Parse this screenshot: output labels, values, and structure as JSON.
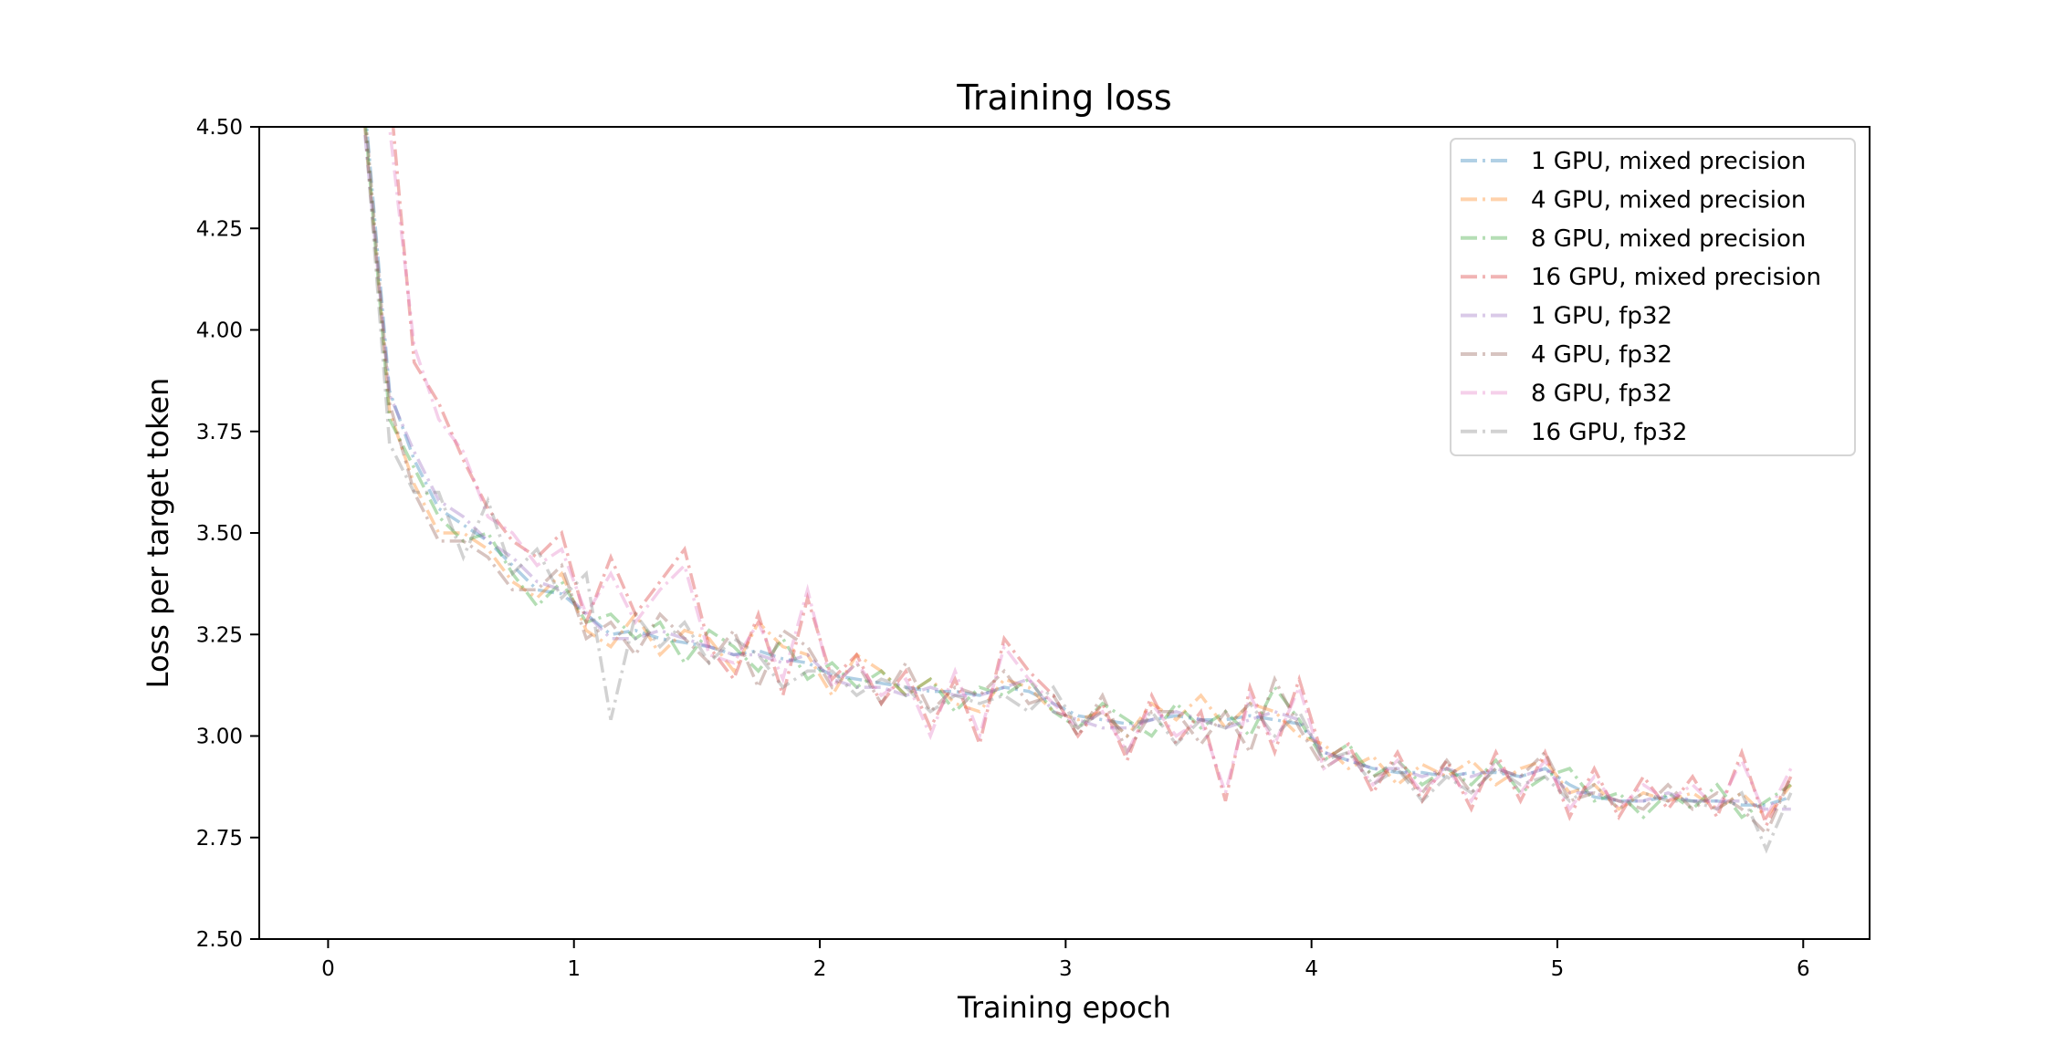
{
  "chart_data": {
    "type": "line",
    "title": "Training loss",
    "xlabel": "Training epoch",
    "ylabel": "Loss per target token",
    "xlim": [
      -0.28,
      6.27
    ],
    "ylim": [
      2.5,
      4.5
    ],
    "xticks": [
      0,
      1,
      2,
      3,
      4,
      5,
      6
    ],
    "yticks": [
      2.5,
      2.75,
      3.0,
      3.25,
      3.5,
      3.75,
      4.0,
      4.25,
      4.5
    ],
    "ytick_labels": [
      "2.50",
      "2.75",
      "3.00",
      "3.25",
      "3.50",
      "3.75",
      "4.00",
      "4.25",
      "4.50"
    ],
    "grid": false,
    "legend_placement": "top-right",
    "line_style": "dash-dot",
    "x": [
      0.15,
      0.25,
      0.35,
      0.45,
      0.55,
      0.65,
      0.75,
      0.85,
      0.95,
      1.05,
      1.15,
      1.25,
      1.35,
      1.45,
      1.55,
      1.65,
      1.75,
      1.85,
      1.95,
      2.05,
      2.15,
      2.25,
      2.35,
      2.45,
      2.55,
      2.65,
      2.75,
      2.85,
      2.95,
      3.05,
      3.15,
      3.25,
      3.35,
      3.45,
      3.55,
      3.65,
      3.75,
      3.85,
      3.95,
      4.05,
      4.15,
      4.25,
      4.35,
      4.45,
      4.55,
      4.65,
      4.75,
      4.85,
      4.95,
      5.05,
      5.15,
      5.25,
      5.35,
      5.45,
      5.55,
      5.65,
      5.75,
      5.85,
      5.95
    ],
    "series": [
      {
        "name": "1 GPU, mixed precision",
        "color": "#1f77b4",
        "values": [
          4.55,
          3.85,
          3.68,
          3.56,
          3.52,
          3.48,
          3.42,
          3.36,
          3.35,
          3.3,
          3.25,
          3.26,
          3.24,
          3.23,
          3.22,
          3.2,
          3.21,
          3.19,
          3.18,
          3.15,
          3.14,
          3.13,
          3.12,
          3.11,
          3.11,
          3.1,
          3.12,
          3.11,
          3.08,
          3.05,
          3.04,
          3.03,
          3.04,
          3.05,
          3.04,
          3.04,
          3.05,
          3.04,
          3.03,
          2.96,
          2.94,
          2.92,
          2.91,
          2.91,
          2.9,
          2.91,
          2.91,
          2.9,
          2.92,
          2.88,
          2.85,
          2.84,
          2.84,
          2.85,
          2.84,
          2.84,
          2.83,
          2.83,
          2.85
        ]
      },
      {
        "name": "4 GPU, mixed precision",
        "color": "#ff7f0e",
        "values": [
          4.5,
          3.8,
          3.62,
          3.5,
          3.5,
          3.46,
          3.38,
          3.34,
          3.4,
          3.26,
          3.22,
          3.3,
          3.2,
          3.26,
          3.24,
          3.16,
          3.28,
          3.22,
          3.2,
          3.1,
          3.2,
          3.16,
          3.1,
          3.14,
          3.08,
          3.06,
          3.14,
          3.12,
          3.06,
          3.04,
          3.06,
          3.0,
          3.08,
          3.04,
          3.1,
          3.02,
          3.08,
          3.06,
          3.0,
          2.98,
          2.92,
          2.95,
          2.88,
          2.93,
          2.9,
          2.94,
          2.88,
          2.92,
          2.94,
          2.86,
          2.88,
          2.82,
          2.86,
          2.84,
          2.86,
          2.82,
          2.86,
          2.8,
          2.88
        ]
      },
      {
        "name": "8 GPU, mixed precision",
        "color": "#2ca02c",
        "values": [
          4.52,
          3.78,
          3.66,
          3.54,
          3.48,
          3.5,
          3.4,
          3.32,
          3.38,
          3.28,
          3.3,
          3.24,
          3.28,
          3.18,
          3.26,
          3.22,
          3.16,
          3.24,
          3.14,
          3.18,
          3.12,
          3.16,
          3.1,
          3.14,
          3.06,
          3.12,
          3.1,
          3.14,
          3.06,
          3.02,
          3.08,
          3.04,
          3.0,
          3.08,
          3.02,
          3.06,
          3.0,
          3.12,
          3.04,
          2.94,
          2.98,
          2.9,
          2.94,
          2.88,
          2.92,
          2.88,
          2.94,
          2.86,
          2.9,
          2.92,
          2.84,
          2.86,
          2.8,
          2.86,
          2.82,
          2.88,
          2.8,
          2.84,
          2.88
        ]
      },
      {
        "name": "16 GPU, mixed precision",
        "color": "#d62728",
        "values": [
          6.0,
          4.6,
          3.92,
          3.82,
          3.68,
          3.56,
          3.48,
          3.44,
          3.5,
          3.28,
          3.44,
          3.3,
          3.38,
          3.46,
          3.22,
          3.14,
          3.3,
          3.1,
          3.34,
          3.14,
          3.2,
          3.08,
          3.16,
          3.02,
          3.14,
          2.98,
          3.24,
          3.16,
          3.1,
          3.0,
          3.08,
          2.94,
          3.1,
          2.98,
          3.06,
          2.84,
          3.12,
          2.96,
          3.14,
          2.94,
          2.98,
          2.86,
          2.96,
          2.84,
          2.94,
          2.82,
          2.96,
          2.84,
          2.96,
          2.8,
          2.92,
          2.8,
          2.9,
          2.82,
          2.9,
          2.8,
          2.96,
          2.78,
          2.9
        ]
      },
      {
        "name": "1 GPU, fp32",
        "color": "#9467bd",
        "values": [
          4.48,
          3.84,
          3.7,
          3.58,
          3.54,
          3.48,
          3.44,
          3.38,
          3.36,
          3.3,
          3.24,
          3.24,
          3.26,
          3.24,
          3.22,
          3.2,
          3.2,
          3.18,
          3.2,
          3.14,
          3.12,
          3.12,
          3.1,
          3.12,
          3.1,
          3.1,
          3.12,
          3.14,
          3.06,
          3.04,
          3.02,
          3.02,
          3.04,
          3.06,
          3.04,
          3.02,
          3.04,
          3.06,
          3.04,
          2.96,
          2.94,
          2.92,
          2.92,
          2.9,
          2.92,
          2.9,
          2.92,
          2.9,
          2.92,
          2.86,
          2.86,
          2.84,
          2.84,
          2.86,
          2.84,
          2.84,
          2.84,
          2.82,
          2.82
        ]
      },
      {
        "name": "4 GPU, fp32",
        "color": "#8c564b",
        "values": [
          4.54,
          3.82,
          3.6,
          3.48,
          3.48,
          3.44,
          3.36,
          3.36,
          3.42,
          3.24,
          3.28,
          3.2,
          3.3,
          3.24,
          3.18,
          3.26,
          3.12,
          3.26,
          3.22,
          3.12,
          3.18,
          3.08,
          3.18,
          3.06,
          3.12,
          3.1,
          3.16,
          3.08,
          3.1,
          3.0,
          3.1,
          2.96,
          3.06,
          3.06,
          2.98,
          3.06,
          2.96,
          3.14,
          3.02,
          2.92,
          2.96,
          2.9,
          2.92,
          2.86,
          2.94,
          2.86,
          2.92,
          2.9,
          2.96,
          2.84,
          2.86,
          2.84,
          2.82,
          2.88,
          2.82,
          2.86,
          2.82,
          2.76,
          2.9
        ]
      },
      {
        "name": "8 GPU, fp32",
        "color": "#e377c2",
        "values": [
          5.8,
          4.5,
          3.96,
          3.78,
          3.7,
          3.54,
          3.5,
          3.42,
          3.46,
          3.3,
          3.4,
          3.28,
          3.36,
          3.42,
          3.2,
          3.18,
          3.28,
          3.14,
          3.36,
          3.12,
          3.18,
          3.1,
          3.14,
          3.0,
          3.16,
          3.0,
          3.22,
          3.14,
          3.08,
          3.02,
          3.06,
          2.96,
          3.08,
          3.0,
          3.04,
          2.86,
          3.1,
          2.98,
          3.12,
          2.92,
          2.96,
          2.88,
          2.94,
          2.86,
          2.92,
          2.84,
          2.94,
          2.86,
          2.94,
          2.82,
          2.9,
          2.82,
          2.88,
          2.84,
          2.88,
          2.82,
          2.94,
          2.8,
          2.92
        ]
      },
      {
        "name": "16 GPU, fp32",
        "color": "#7f7f7f",
        "values": [
          4.5,
          3.72,
          3.6,
          3.6,
          3.44,
          3.58,
          3.4,
          3.46,
          3.34,
          3.4,
          3.04,
          3.3,
          3.22,
          3.28,
          3.18,
          3.24,
          3.2,
          3.12,
          3.16,
          3.16,
          3.1,
          3.14,
          3.12,
          3.06,
          3.1,
          3.08,
          3.1,
          3.06,
          3.12,
          3.02,
          3.06,
          3.0,
          3.06,
          2.98,
          3.04,
          3.02,
          3.08,
          3.0,
          3.06,
          2.94,
          2.96,
          2.88,
          2.92,
          2.84,
          2.9,
          2.86,
          2.92,
          2.88,
          2.9,
          2.84,
          2.88,
          2.82,
          2.86,
          2.84,
          2.84,
          2.82,
          2.86,
          2.72,
          2.86
        ]
      }
    ]
  }
}
